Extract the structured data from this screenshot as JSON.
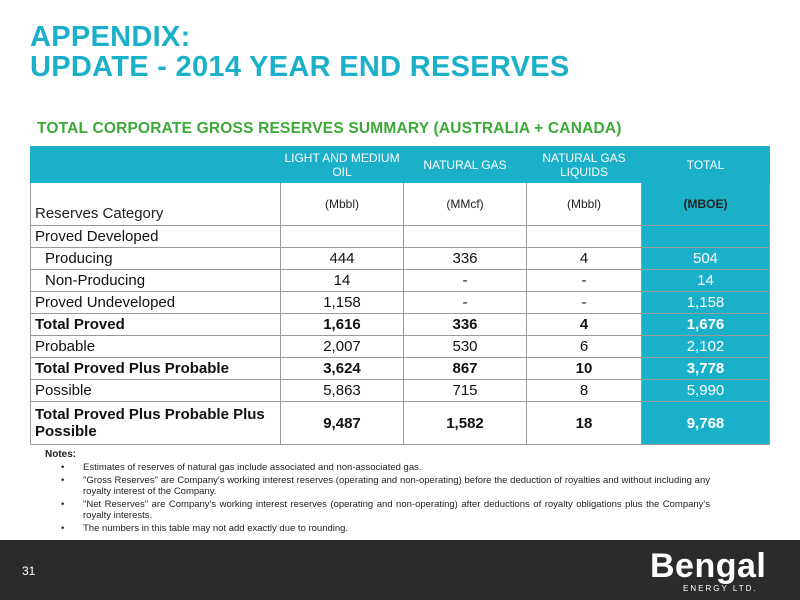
{
  "title": {
    "line1": "APPENDIX:",
    "line2": "UPDATE - 2014 YEAR END RESERVES"
  },
  "subtitle": "TOTAL CORPORATE GROSS RESERVES SUMMARY (AUSTRALIA + CANADA)",
  "table": {
    "headers": [
      "",
      "LIGHT AND MEDIUM OIL",
      "NATURAL GAS",
      "NATURAL GAS LIQUIDS",
      "TOTAL"
    ],
    "units": [
      "Reserves Category",
      "(Mbbl)",
      "(MMcf)",
      "(Mbbl)",
      "(MBOE)"
    ],
    "rows": [
      [
        "Proved Developed",
        "",
        "",
        "",
        ""
      ],
      [
        "Producing",
        "444",
        "336",
        "4",
        "504"
      ],
      [
        "Non-Producing",
        "14",
        "-",
        "-",
        "14"
      ],
      [
        "Proved Undeveloped",
        "1,158",
        "-",
        "-",
        "1,158"
      ],
      [
        "Total Proved",
        "1,616",
        "336",
        "4",
        "1,676"
      ],
      [
        "Probable",
        "2,007",
        "530",
        "6",
        "2,102"
      ],
      [
        "Total Proved Plus Probable",
        "3,624",
        "867",
        "10",
        "3,778"
      ],
      [
        "Possible",
        "5,863",
        "715",
        "8",
        "5,990"
      ],
      [
        "Total Proved Plus Probable Plus Possible",
        "9,487",
        "1,582",
        "18",
        "9,768"
      ]
    ]
  },
  "notes": {
    "title": "Notes",
    "items": [
      "Estimates of reserves of natural gas include associated and non-associated gas.",
      "\"Gross Reserves\" are Company's working interest reserves (operating and non-operating) before the deduction of royalties and without including any royalty interest of the Company.",
      "\"Net Reserves\" are Company's working interest reserves (operating and non-operating) after deductions of royalty obligations plus the Company's royalty interests.",
      "The numbers in this table may not add exactly due to rounding."
    ]
  },
  "footer": {
    "page_number": "31",
    "logo_name": "Bengal",
    "logo_sub": "ENERGY LTD."
  },
  "colors": {
    "accent": "#1bb0c9",
    "subtitle": "#3aa935",
    "footer_bg": "#2b2b2b"
  }
}
